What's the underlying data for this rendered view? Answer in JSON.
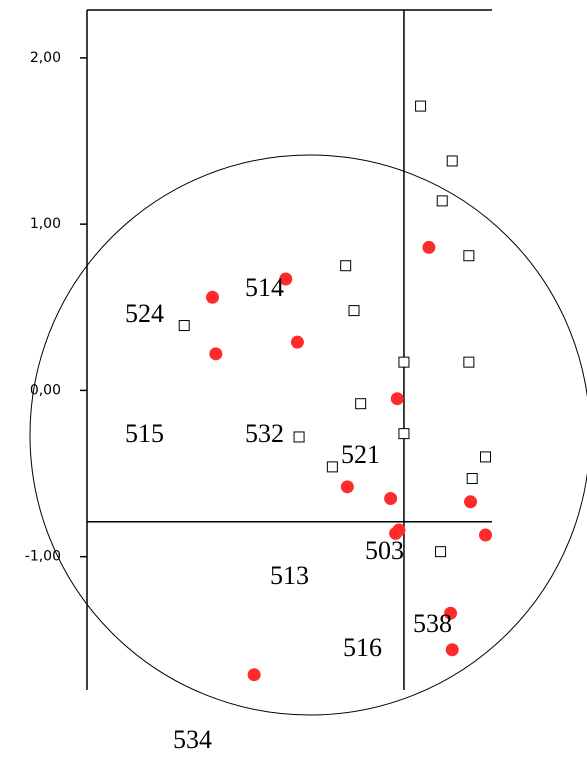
{
  "chart_data": {
    "type": "scatter",
    "xlim": [
      -1.904,
      0.529
    ],
    "ylim": [
      -1.802,
      2.288
    ],
    "yticks": [
      {
        "value": 2,
        "label": "2,00"
      },
      {
        "value": 1,
        "label": "1,00"
      },
      {
        "value": 0,
        "label": "0,00"
      },
      {
        "value": -1,
        "label": "-1,00"
      }
    ],
    "reference_x": 0,
    "reference_y": -0.79,
    "series": [
      {
        "color": "#ff2a2a",
        "marker": "circle",
        "x": [
          0.15,
          -0.71,
          -1.15,
          -1.13,
          -0.64,
          -0.04,
          -0.34,
          -0.08,
          0.4,
          0.49,
          -0.03,
          -0.05,
          0.28,
          0.29,
          -0.9
        ],
        "values": [
          0.86,
          0.67,
          0.56,
          0.22,
          0.29,
          -0.05,
          -0.58,
          -0.65,
          -0.67,
          -0.87,
          -0.84,
          -0.86,
          -1.34,
          -1.56,
          -1.71
        ]
      },
      {
        "color": "#000000",
        "marker": "square",
        "x": [
          0.1,
          0.29,
          0.23,
          0.39,
          -0.35,
          -0.3,
          -1.32,
          0.0,
          0.39,
          -0.26,
          0.0,
          -0.63,
          -0.43,
          0.49,
          0.41,
          0.22
        ],
        "values": [
          1.71,
          1.38,
          1.14,
          0.81,
          0.75,
          0.48,
          0.39,
          0.17,
          0.17,
          -0.08,
          -0.26,
          -0.28,
          -0.46,
          -0.4,
          -0.53,
          -0.97
        ]
      }
    ],
    "annotations": [
      "524",
      "514",
      "515",
      "532",
      "521",
      "503",
      "513",
      "538",
      "516",
      "534"
    ]
  }
}
